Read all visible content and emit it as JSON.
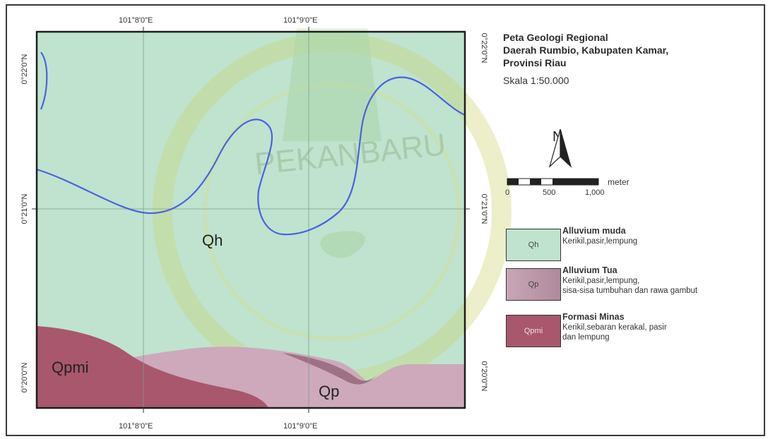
{
  "map": {
    "grid": {
      "lon_top": [
        "101°8'0\"E",
        "101°9'0\"E"
      ],
      "lon_bottom": [
        "101°8'0\"E",
        "101°9'0\"E"
      ],
      "lat_left": [
        "0°22'0\"N",
        "0°21'0\"N",
        "0°20'0\"N"
      ],
      "lat_right": [
        "0°22'0\"N",
        "0°21'0\"N",
        "0°20'0\"N"
      ]
    },
    "unit_labels": {
      "qh": "Qh",
      "qp": "Qp",
      "qpmi": "Qpmi"
    },
    "watermark": "PEKANBARU",
    "colors": {
      "qh": "#bfe3cf",
      "qp": "#cda9bb",
      "qpmi": "#a9576d",
      "river": "#4a62e0"
    }
  },
  "title_block": {
    "title_lines": [
      "Peta Geologi Regional",
      "Daerah Rumbio, Kabupaten Kamar,",
      "Provinsi Riau"
    ],
    "scale": "Skala 1:50.000",
    "north": "N",
    "scalebar": {
      "unit": "meter",
      "ticks": [
        "0",
        "500",
        "1,000"
      ]
    }
  },
  "legend": [
    {
      "code": "Qh",
      "title": "Alluvium muda",
      "desc": [
        "Kerikil,pasir,lempung"
      ],
      "color": "#bfe3cf"
    },
    {
      "code": "Qp",
      "title": "Alluvium Tua",
      "desc": [
        "Kerikil,pasir,lempung,",
        "sisa-sisa tumbuhan dan rawa gambut"
      ],
      "color": "#c8a6b6"
    },
    {
      "code": "Qpmi",
      "title": "Formasi Minas",
      "desc": [
        "Kerikil,sebaran kerakal, pasir",
        "dan lempung"
      ],
      "color": "#a9576d"
    }
  ]
}
